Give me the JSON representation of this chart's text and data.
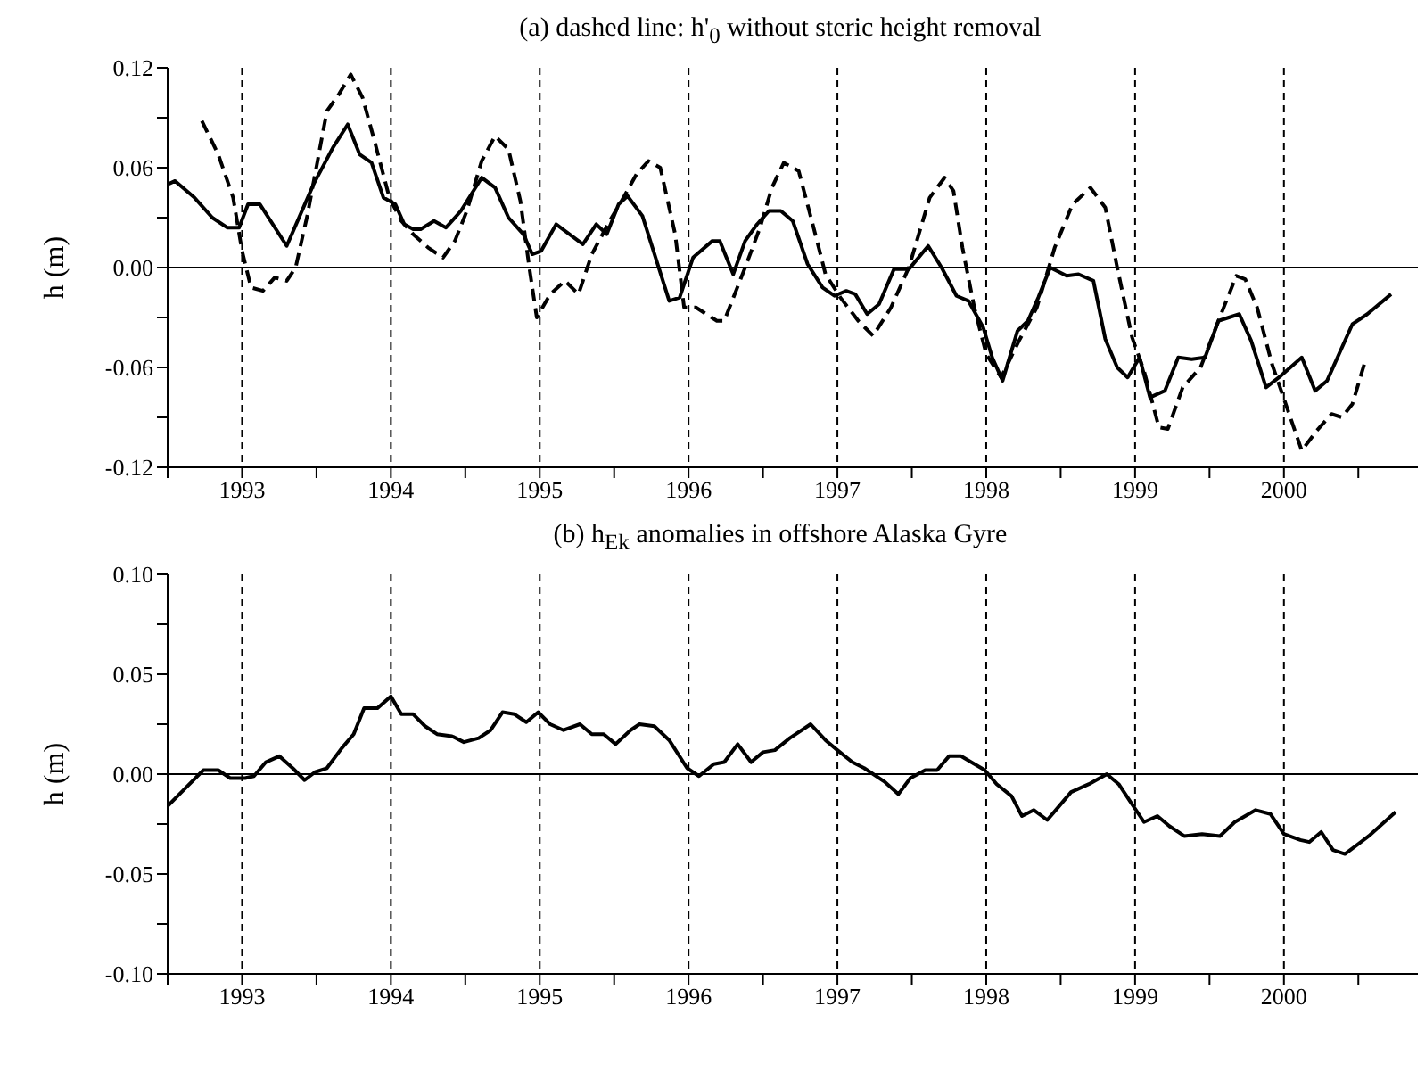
{
  "chart_data": [
    {
      "type": "line",
      "title": "(a) dashed line: h'$_{0}$ without steric height removal",
      "ylabel": "h (m)",
      "xlim": [
        1992.5,
        2000.9
      ],
      "xticks": [
        {
          "value": 1992.5,
          "label": null
        },
        {
          "value": 1993,
          "label": "1993"
        },
        {
          "value": 1993.5,
          "label": null
        },
        {
          "value": 1994,
          "label": "1994"
        },
        {
          "value": 1994.5,
          "label": null
        },
        {
          "value": 1995,
          "label": "1995"
        },
        {
          "value": 1995.5,
          "label": null
        },
        {
          "value": 1996,
          "label": "1996"
        },
        {
          "value": 1996.5,
          "label": null
        },
        {
          "value": 1997,
          "label": "1997"
        },
        {
          "value": 1997.5,
          "label": null
        },
        {
          "value": 1998,
          "label": "1998"
        },
        {
          "value": 1998.5,
          "label": null
        },
        {
          "value": 1999,
          "label": "1999"
        },
        {
          "value": 1999.5,
          "label": null
        },
        {
          "value": 2000,
          "label": "2000"
        },
        {
          "value": 2000.5,
          "label": null
        }
      ],
      "ylim": [
        -0.12,
        0.12
      ],
      "yticks": [
        -0.12,
        {
          "value": -0.09,
          "label": null
        },
        -0.06,
        {
          "value": -0.03,
          "label": null
        },
        {
          "value": 0,
          "label": "0.00"
        },
        {
          "value": 0.03,
          "label": null
        },
        0.06,
        {
          "value": 0.09,
          "label": null
        },
        0.12
      ],
      "grid": "x",
      "marker": "none",
      "ref_lines": [
        {
          "axis": "y",
          "value": 0,
          "color": "#000000",
          "line_style": "solid"
        }
      ],
      "series": [
        {
          "color": "#000000",
          "line_style": "solid",
          "x": [
            1992.5,
            1992.55,
            1992.68,
            1992.8,
            1992.9,
            1992.98,
            1993.04,
            1993.12,
            1993.3,
            1993.48,
            1993.61,
            1993.71,
            1993.79,
            1993.87,
            1993.95,
            1994.03,
            1994.09,
            1994.15,
            1994.2,
            1994.29,
            1994.37,
            1994.47,
            1994.61,
            1994.7,
            1994.79,
            1994.89,
            1994.95,
            1995.01,
            1995.11,
            1995.29,
            1995.38,
            1995.45,
            1995.53,
            1995.59,
            1995.69,
            1995.87,
            1995.94,
            1996.03,
            1996.16,
            1996.21,
            1996.3,
            1996.38,
            1996.46,
            1996.54,
            1996.62,
            1996.7,
            1996.8,
            1996.9,
            1996.98,
            1997.06,
            1997.12,
            1997.2,
            1997.28,
            1997.38,
            1997.48,
            1997.61,
            1997.7,
            1997.8,
            1997.88,
            1997.98,
            1998.04,
            1998.11,
            1998.21,
            1998.28,
            1998.35,
            1998.43,
            1998.54,
            1998.62,
            1998.72,
            1998.8,
            1998.88,
            1998.95,
            1999.03,
            1999.1,
            1999.2,
            1999.29,
            1999.38,
            1999.47,
            1999.56,
            1999.7,
            1999.78,
            1999.88,
            1999.98,
            2000.12,
            2000.21,
            2000.29,
            2000.46,
            2000.56,
            2000.72
          ],
          "values": [
            0.05,
            0.052,
            0.042,
            0.03,
            0.024,
            0.024,
            0.038,
            0.038,
            0.013,
            0.05,
            0.072,
            0.086,
            0.068,
            0.063,
            0.042,
            0.038,
            0.026,
            0.023,
            0.023,
            0.028,
            0.024,
            0.034,
            0.054,
            0.048,
            0.03,
            0.02,
            0.008,
            0.01,
            0.026,
            0.014,
            0.026,
            0.02,
            0.038,
            0.043,
            0.031,
            -0.02,
            -0.018,
            0.006,
            0.016,
            0.016,
            -0.004,
            0.016,
            0.026,
            0.034,
            0.034,
            0.028,
            0.002,
            -0.012,
            -0.017,
            -0.014,
            -0.016,
            -0.028,
            -0.022,
            -0.001,
            -0.001,
            0.013,
            0,
            -0.017,
            -0.02,
            -0.036,
            -0.054,
            -0.068,
            -0.038,
            -0.032,
            -0.018,
            0,
            -0.005,
            -0.004,
            -0.008,
            -0.043,
            -0.06,
            -0.066,
            -0.054,
            -0.078,
            -0.074,
            -0.054,
            -0.055,
            -0.054,
            -0.032,
            -0.028,
            -0.044,
            -0.072,
            -0.065,
            -0.054,
            -0.074,
            -0.068,
            -0.034,
            -0.028,
            -0.016
          ]
        },
        {
          "color": "#000000",
          "line_style": "dashed",
          "x": [
            1992.73,
            1992.84,
            1992.94,
            1993,
            1993.06,
            1993.14,
            1993.22,
            1993.3,
            1993.36,
            1993.44,
            1993.57,
            1993.65,
            1993.73,
            1993.81,
            1993.89,
            1993.99,
            1994.07,
            1994.15,
            1994.25,
            1994.35,
            1994.43,
            1994.51,
            1994.61,
            1994.7,
            1994.79,
            1994.87,
            1994.93,
            1994.98,
            1995.07,
            1995.17,
            1995.26,
            1995.35,
            1995.47,
            1995.55,
            1995.65,
            1995.73,
            1995.81,
            1995.91,
            1995.97,
            1996.05,
            1996.19,
            1996.24,
            1996.38,
            1996.48,
            1996.56,
            1996.64,
            1996.74,
            1996.84,
            1996.92,
            1997.02,
            1997.14,
            1997.24,
            1997.36,
            1997.48,
            1997.62,
            1997.72,
            1997.78,
            1997.84,
            1997.92,
            1998,
            1998.1,
            1998.22,
            1998.34,
            1998.46,
            1998.58,
            1998.7,
            1998.8,
            1998.88,
            1998.98,
            1999.06,
            1999.16,
            1999.22,
            1999.32,
            1999.44,
            1999.56,
            1999.68,
            1999.74,
            1999.82,
            1999.92,
            2000.02,
            2000.12,
            2000.22,
            2000.32,
            2000.39,
            2000.46,
            2000.54
          ],
          "values": [
            0.088,
            0.068,
            0.042,
            0.01,
            -0.012,
            -0.014,
            -0.006,
            -0.008,
            0,
            0.032,
            0.094,
            0.104,
            0.116,
            0.102,
            0.076,
            0.042,
            0.028,
            0.02,
            0.012,
            0.006,
            0.016,
            0.034,
            0.064,
            0.079,
            0.071,
            0.04,
            0,
            -0.03,
            -0.016,
            -0.008,
            -0.016,
            0.008,
            0.028,
            0.04,
            0.056,
            0.064,
            0.06,
            0.02,
            -0.024,
            -0.024,
            -0.032,
            -0.032,
            0,
            0.024,
            0.048,
            0.063,
            0.058,
            0.024,
            -0.004,
            -0.018,
            -0.032,
            -0.041,
            -0.024,
            0,
            0.042,
            0.054,
            0.046,
            0.012,
            -0.024,
            -0.052,
            -0.066,
            -0.044,
            -0.024,
            0.012,
            0.038,
            0.048,
            0.036,
            0,
            -0.042,
            -0.062,
            -0.096,
            -0.097,
            -0.072,
            -0.06,
            -0.032,
            -0.005,
            -0.007,
            -0.024,
            -0.058,
            -0.084,
            -0.11,
            -0.098,
            -0.088,
            -0.09,
            -0.082,
            -0.058
          ]
        }
      ]
    },
    {
      "type": "line",
      "title": "(b) h$_{Ek}$ anomalies in offshore Alaska Gyre",
      "ylabel": "h (m)",
      "xlim": [
        1992.5,
        2000.9
      ],
      "xticks": [
        {
          "value": 1992.5,
          "label": null
        },
        {
          "value": 1993,
          "label": "1993"
        },
        {
          "value": 1993.5,
          "label": null
        },
        {
          "value": 1994,
          "label": "1994"
        },
        {
          "value": 1994.5,
          "label": null
        },
        {
          "value": 1995,
          "label": "1995"
        },
        {
          "value": 1995.5,
          "label": null
        },
        {
          "value": 1996,
          "label": "1996"
        },
        {
          "value": 1996.5,
          "label": null
        },
        {
          "value": 1997,
          "label": "1997"
        },
        {
          "value": 1997.5,
          "label": null
        },
        {
          "value": 1998,
          "label": "1998"
        },
        {
          "value": 1998.5,
          "label": null
        },
        {
          "value": 1999,
          "label": "1999"
        },
        {
          "value": 1999.5,
          "label": null
        },
        {
          "value": 2000,
          "label": "2000"
        },
        {
          "value": 2000.5,
          "label": null
        }
      ],
      "ylim": [
        -0.1,
        0.1
      ],
      "yticks": [
        {
          "value": -0.1,
          "label": "-0.10"
        },
        {
          "value": -0.075,
          "label": null
        },
        -0.05,
        {
          "value": -0.025,
          "label": null
        },
        {
          "value": 0,
          "label": "0.00"
        },
        {
          "value": 0.025,
          "label": null
        },
        0.05,
        {
          "value": 0.075,
          "label": null
        },
        {
          "value": 0.1,
          "label": "0.10"
        }
      ],
      "grid": "x",
      "marker": "none",
      "ref_lines": [
        {
          "axis": "y",
          "value": 0,
          "color": "#000000",
          "line_style": "solid"
        }
      ],
      "series": [
        {
          "color": "#000000",
          "line_style": "solid",
          "x": [
            1992.5,
            1992.62,
            1992.74,
            1992.84,
            1992.92,
            1993.02,
            1993.08,
            1993.16,
            1993.25,
            1993.34,
            1993.42,
            1993.49,
            1993.57,
            1993.67,
            1993.75,
            1993.82,
            1993.91,
            1994,
            1994.07,
            1994.15,
            1994.23,
            1994.31,
            1994.41,
            1994.49,
            1994.59,
            1994.67,
            1994.75,
            1994.83,
            1994.91,
            1994.99,
            1995.07,
            1995.16,
            1995.27,
            1995.35,
            1995.43,
            1995.51,
            1995.61,
            1995.67,
            1995.77,
            1995.87,
            1995.99,
            1996.07,
            1996.17,
            1996.24,
            1996.33,
            1996.42,
            1996.5,
            1996.58,
            1996.68,
            1996.82,
            1996.92,
            1997,
            1997.1,
            1997.18,
            1997.32,
            1997.41,
            1997.49,
            1997.59,
            1997.67,
            1997.75,
            1997.83,
            1997.99,
            1998.07,
            1998.17,
            1998.24,
            1998.32,
            1998.41,
            1998.49,
            1998.57,
            1998.69,
            1998.81,
            1998.89,
            1998.97,
            1999.06,
            1999.15,
            1999.23,
            1999.33,
            1999.45,
            1999.57,
            1999.67,
            1999.81,
            1999.91,
            2000,
            2000.11,
            2000.17,
            2000.25,
            2000.33,
            2000.41,
            2000.57,
            2000.75
          ],
          "values": [
            -0.016,
            -0.007,
            0.002,
            0.002,
            -0.002,
            -0.002,
            -0.001,
            0.006,
            0.009,
            0.003,
            -0.003,
            0.001,
            0.003,
            0.013,
            0.02,
            0.033,
            0.033,
            0.039,
            0.03,
            0.03,
            0.024,
            0.02,
            0.019,
            0.016,
            0.018,
            0.022,
            0.031,
            0.03,
            0.026,
            0.031,
            0.025,
            0.022,
            0.025,
            0.02,
            0.02,
            0.015,
            0.022,
            0.025,
            0.024,
            0.017,
            0.003,
            -0.001,
            0.005,
            0.006,
            0.015,
            0.006,
            0.011,
            0.012,
            0.018,
            0.025,
            0.017,
            0.012,
            0.006,
            0.003,
            -0.004,
            -0.01,
            -0.002,
            0.002,
            0.002,
            0.009,
            0.009,
            0.002,
            -0.005,
            -0.011,
            -0.021,
            -0.018,
            -0.023,
            -0.016,
            -0.009,
            -0.005,
            0,
            -0.005,
            -0.014,
            -0.024,
            -0.021,
            -0.026,
            -0.031,
            -0.03,
            -0.031,
            -0.024,
            -0.018,
            -0.02,
            -0.03,
            -0.033,
            -0.034,
            -0.029,
            -0.038,
            -0.04,
            -0.031,
            -0.019
          ]
        }
      ]
    }
  ]
}
